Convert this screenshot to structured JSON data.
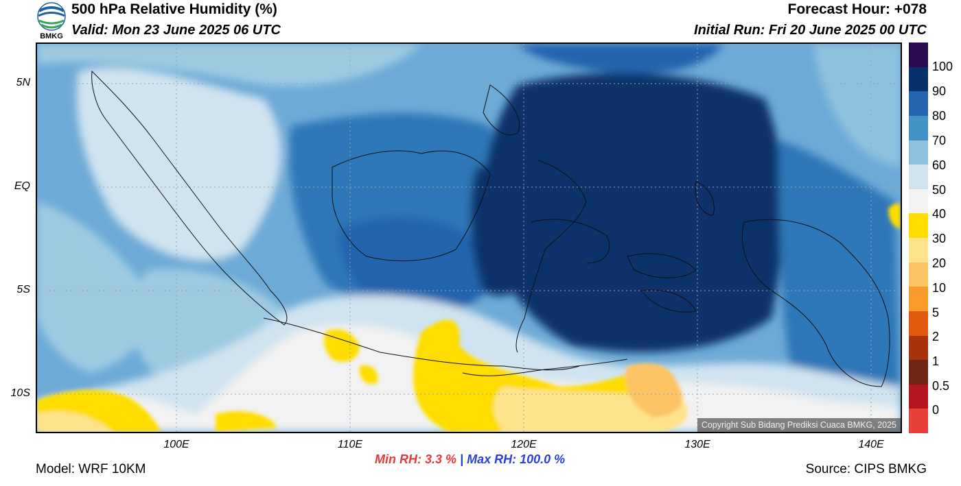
{
  "header": {
    "title": "500 hPa Relative Humidity (%)",
    "valid": "Valid: Mon 23 June 2025 06 UTC",
    "forecast_hour": "Forecast Hour: +078",
    "initial_run": "Initial Run: Fri 20 June 2025 00 UTC"
  },
  "logo": {
    "text": "BMKG",
    "icon": "bmkg-logo-icon"
  },
  "axes": {
    "lat_labels": [
      "5N",
      "EQ",
      "5S",
      "10S"
    ],
    "lon_labels": [
      "100E",
      "110E",
      "120E",
      "130E",
      "140E"
    ]
  },
  "colorbar": {
    "labels": [
      "100",
      "90",
      "80",
      "70",
      "60",
      "50",
      "40",
      "30",
      "20",
      "10",
      "5",
      "2",
      "1",
      "0.5",
      "0"
    ],
    "colors": [
      "#2b0a4f",
      "#08306b",
      "#2463ad",
      "#4292c6",
      "#8fc1de",
      "#cfe3f0",
      "#f2f2f2",
      "#ffdd00",
      "#ffe38a",
      "#fcc462",
      "#f99a2b",
      "#e0590e",
      "#a8340c",
      "#6f2511",
      "#b3161c",
      "#e8413b"
    ]
  },
  "stats": {
    "min_label": "Min RH:",
    "min_value": "3.3 %",
    "separator": "|",
    "max_label": "Max RH:",
    "max_value": "100.0 %"
  },
  "footer": {
    "model": "Model: WRF 10KM",
    "source": "Source: CIPS BMKG",
    "copyright": "Copyright Sub Bidang Prediksi Cuaca BMKG, 2025"
  }
}
